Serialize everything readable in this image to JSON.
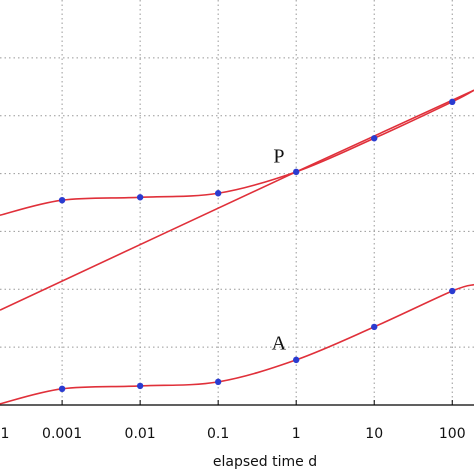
{
  "chart_data": {
    "type": "line",
    "x_label": "elapsed time  d",
    "x_scale": "log",
    "xlim": [
      0.00016,
      190
    ],
    "ylim": [
      0,
      7
    ],
    "xticks": [
      {
        "value": 0.0001,
        "label": "1"
      },
      0.001,
      0.01,
      0.1,
      1,
      10,
      100
    ],
    "yticks": [
      1,
      2,
      3,
      4,
      5,
      6
    ],
    "grid": true,
    "series": [
      {
        "color": "#e0303a",
        "x": [
          0.00016,
          0.001,
          0.01,
          0.1,
          1,
          10,
          100,
          190
        ],
        "values": [
          3.28,
          3.54,
          3.59,
          3.66,
          4.03,
          4.61,
          5.24,
          5.44
        ]
      },
      {
        "color": "#e0303a",
        "x": [
          0.00016,
          1,
          190
        ],
        "values": [
          1.64,
          4.03,
          5.44
        ]
      },
      {
        "color": "#e0303a",
        "x": [
          0.00016,
          0.001,
          0.01,
          0.1,
          1,
          10,
          100,
          190
        ],
        "values": [
          0.02,
          0.28,
          0.33,
          0.4,
          0.78,
          1.35,
          1.97,
          2.08
        ]
      }
    ],
    "points": [
      {
        "color": "#2a3bd0",
        "x": [
          0.001,
          0.01,
          0.1,
          1,
          10,
          100
        ],
        "values": [
          3.54,
          3.59,
          3.66,
          4.03,
          4.61,
          5.24
        ]
      },
      {
        "color": "#2a3bd0",
        "x": [
          0.001,
          0.01,
          0.1,
          1,
          10,
          100
        ],
        "values": [
          0.28,
          0.33,
          0.4,
          0.78,
          1.35,
          1.97
        ]
      }
    ],
    "annotations": [
      {
        "text": "P",
        "x": 0.6,
        "y": 4.27
      },
      {
        "text": "A",
        "x": 0.6,
        "y": 1.04
      }
    ]
  }
}
